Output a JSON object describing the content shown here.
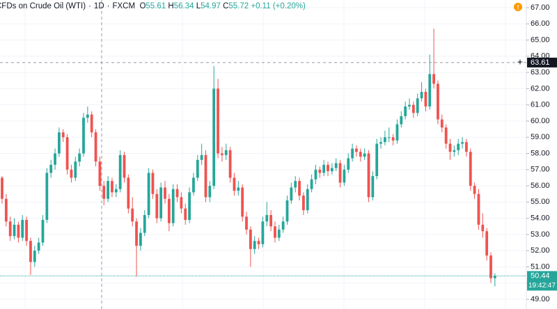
{
  "header": {
    "symbol": "CFDs on Crude Oil (WTI)",
    "interval": "1D",
    "exchange": "FXCM",
    "open_label": "O",
    "open": "55.61",
    "high_label": "H",
    "high": "56.34",
    "low_label": "L",
    "low": "54.97",
    "close_label": "C",
    "close": "55.72",
    "change": "+0.11 (+0.20%)"
  },
  "chart_data": {
    "type": "candlestick",
    "up_color": "#26a69a",
    "down_color": "#ef5350",
    "grid": true,
    "ylim": [
      48.4,
      67.47
    ],
    "yticks": [
      {
        "value": 49,
        "label": "49.00"
      },
      {
        "value": 50,
        "label": "50.00"
      },
      {
        "value": 51,
        "label": "51.00"
      },
      {
        "value": 52,
        "label": "52.00"
      },
      {
        "value": 53,
        "label": "53.00"
      },
      {
        "value": 54,
        "label": "54.00"
      },
      {
        "value": 55,
        "label": "55.00"
      },
      {
        "value": 56,
        "label": "56.00"
      },
      {
        "value": 57,
        "label": "57.00"
      },
      {
        "value": 58,
        "label": "58.00"
      },
      {
        "value": 59,
        "label": "59.00"
      },
      {
        "value": 60,
        "label": "60.00"
      },
      {
        "value": 61,
        "label": "61.00"
      },
      {
        "value": 62,
        "label": "62.00"
      },
      {
        "value": 63,
        "label": "63.00"
      },
      {
        "value": 64,
        "label": "64.00"
      },
      {
        "value": 65,
        "label": "65.00"
      },
      {
        "value": 66,
        "label": "66.00"
      },
      {
        "value": 67,
        "label": "67.00"
      }
    ],
    "crosshair_price": 63.61,
    "last_price": 50.44,
    "countdown": "19:42:47",
    "candles": [
      [
        56.5,
        56.6,
        54.9,
        55.2
      ],
      [
        55.2,
        55.5,
        53.5,
        53.8
      ],
      [
        53.8,
        54.1,
        52.6,
        52.9
      ],
      [
        52.9,
        54.0,
        52.7,
        53.6
      ],
      [
        53.6,
        53.8,
        52.5,
        52.8
      ],
      [
        52.8,
        54.2,
        52.6,
        53.9
      ],
      [
        53.9,
        54.1,
        52.3,
        52.6
      ],
      [
        52.6,
        52.8,
        50.5,
        51.3
      ],
      [
        51.3,
        52.3,
        51.0,
        52.0
      ],
      [
        52.0,
        52.8,
        51.8,
        52.5
      ],
      [
        52.5,
        54.2,
        52.3,
        53.9
      ],
      [
        53.9,
        57.1,
        53.7,
        56.8
      ],
      [
        56.8,
        57.6,
        56.5,
        57.3
      ],
      [
        57.3,
        58.3,
        57.0,
        58.0
      ],
      [
        58.0,
        59.6,
        57.8,
        59.3
      ],
      [
        59.3,
        59.5,
        58.7,
        59.0
      ],
      [
        59.0,
        59.2,
        56.7,
        57.0
      ],
      [
        57.0,
        57.3,
        56.2,
        56.5
      ],
      [
        56.5,
        57.8,
        56.3,
        57.5
      ],
      [
        57.5,
        58.3,
        57.2,
        58.0
      ],
      [
        58.0,
        60.5,
        57.8,
        60.2
      ],
      [
        60.2,
        60.9,
        59.9,
        60.4
      ],
      [
        60.4,
        60.6,
        59.0,
        59.3
      ],
      [
        59.3,
        59.5,
        57.2,
        57.5
      ],
      [
        57.5,
        57.8,
        55.7,
        56.0
      ],
      [
        56.0,
        56.3,
        54.8,
        55.2
      ],
      [
        55.2,
        56.6,
        55.0,
        56.3
      ],
      [
        56.3,
        56.5,
        55.3,
        55.6
      ],
      [
        55.6,
        56.1,
        55.3,
        55.8
      ],
      [
        55.8,
        58.2,
        55.6,
        57.9
      ],
      [
        57.9,
        58.1,
        56.2,
        56.5
      ],
      [
        56.5,
        56.7,
        54.3,
        54.6
      ],
      [
        54.6,
        55.3,
        53.5,
        53.8
      ],
      [
        53.8,
        54.0,
        50.4,
        52.3
      ],
      [
        52.3,
        53.4,
        52.0,
        53.1
      ],
      [
        53.1,
        54.5,
        52.9,
        54.2
      ],
      [
        54.2,
        57.1,
        54.0,
        56.8
      ],
      [
        56.8,
        57.0,
        55.2,
        55.5
      ],
      [
        55.5,
        55.8,
        53.7,
        54.0
      ],
      [
        54.0,
        56.2,
        53.8,
        55.9
      ],
      [
        55.9,
        56.3,
        54.9,
        55.2
      ],
      [
        55.2,
        55.5,
        53.2,
        53.7
      ],
      [
        53.7,
        56.1,
        53.5,
        55.8
      ],
      [
        55.8,
        56.1,
        55.0,
        55.3
      ],
      [
        55.3,
        55.6,
        54.3,
        54.6
      ],
      [
        54.6,
        54.9,
        53.6,
        53.9
      ],
      [
        53.9,
        55.9,
        53.7,
        55.6
      ],
      [
        55.6,
        56.8,
        55.4,
        56.5
      ],
      [
        56.5,
        57.9,
        56.3,
        57.6
      ],
      [
        57.6,
        58.6,
        57.3,
        57.9
      ],
      [
        57.9,
        58.2,
        55.0,
        55.3
      ],
      [
        55.3,
        56.3,
        55.0,
        56.0
      ],
      [
        56.0,
        63.4,
        55.8,
        62.0
      ],
      [
        62.0,
        62.6,
        57.7,
        58.0
      ],
      [
        58.0,
        58.4,
        57.5,
        57.9
      ],
      [
        57.9,
        58.6,
        57.6,
        58.2
      ],
      [
        58.2,
        58.4,
        56.2,
        56.5
      ],
      [
        56.5,
        56.8,
        55.4,
        55.7
      ],
      [
        55.7,
        56.3,
        55.4,
        55.9
      ],
      [
        55.9,
        56.1,
        53.8,
        54.1
      ],
      [
        54.1,
        54.4,
        53.0,
        53.3
      ],
      [
        53.3,
        53.5,
        51.0,
        52.1
      ],
      [
        52.1,
        52.9,
        51.8,
        52.6
      ],
      [
        52.6,
        52.8,
        52.1,
        52.4
      ],
      [
        52.4,
        54.1,
        52.2,
        53.8
      ],
      [
        53.8,
        55.0,
        53.5,
        54.2
      ],
      [
        54.2,
        54.5,
        53.2,
        53.5
      ],
      [
        53.5,
        53.8,
        52.5,
        52.8
      ],
      [
        52.8,
        53.6,
        52.6,
        53.3
      ],
      [
        53.3,
        54.1,
        53.1,
        53.8
      ],
      [
        53.8,
        55.4,
        53.6,
        55.1
      ],
      [
        55.1,
        56.2,
        54.9,
        55.9
      ],
      [
        55.9,
        56.6,
        55.6,
        56.3
      ],
      [
        56.3,
        56.5,
        55.1,
        55.4
      ],
      [
        55.4,
        55.6,
        54.2,
        54.5
      ],
      [
        54.5,
        56.1,
        54.3,
        55.8
      ],
      [
        55.8,
        56.7,
        55.6,
        56.4
      ],
      [
        56.4,
        57.3,
        56.1,
        57.0
      ],
      [
        57.0,
        57.2,
        56.5,
        56.8
      ],
      [
        56.8,
        57.6,
        56.6,
        57.3
      ],
      [
        57.3,
        57.5,
        56.6,
        56.9
      ],
      [
        56.9,
        57.4,
        56.7,
        57.1
      ],
      [
        57.1,
        57.7,
        56.9,
        57.4
      ],
      [
        57.4,
        57.6,
        55.9,
        56.2
      ],
      [
        56.2,
        57.3,
        56.0,
        57.0
      ],
      [
        57.0,
        58.0,
        56.8,
        57.7
      ],
      [
        57.7,
        58.6,
        57.5,
        58.3
      ],
      [
        58.3,
        58.5,
        57.8,
        58.1
      ],
      [
        58.1,
        58.3,
        57.5,
        57.8
      ],
      [
        57.8,
        58.3,
        57.6,
        58.0
      ],
      [
        58.0,
        58.2,
        55.0,
        55.3
      ],
      [
        55.3,
        56.9,
        55.1,
        56.6
      ],
      [
        56.6,
        58.9,
        56.4,
        58.6
      ],
      [
        58.6,
        59.0,
        58.3,
        58.7
      ],
      [
        58.7,
        59.4,
        58.5,
        59.0
      ],
      [
        59.0,
        59.6,
        58.7,
        59.0
      ],
      [
        59.0,
        59.2,
        58.5,
        58.8
      ],
      [
        58.8,
        60.1,
        58.6,
        59.8
      ],
      [
        59.8,
        60.6,
        59.6,
        60.3
      ],
      [
        60.3,
        61.2,
        60.1,
        60.9
      ],
      [
        60.9,
        61.4,
        60.7,
        61.0
      ],
      [
        61.0,
        61.2,
        60.2,
        60.5
      ],
      [
        60.5,
        61.7,
        60.3,
        61.4
      ],
      [
        61.4,
        62.4,
        61.2,
        61.8
      ],
      [
        61.8,
        62.0,
        60.6,
        60.9
      ],
      [
        60.9,
        64.1,
        60.7,
        62.9
      ],
      [
        62.9,
        65.7,
        62.0,
        62.3
      ],
      [
        62.3,
        62.5,
        59.8,
        60.1
      ],
      [
        60.1,
        60.4,
        59.3,
        59.6
      ],
      [
        59.6,
        59.8,
        58.3,
        58.6
      ],
      [
        58.6,
        58.9,
        57.6,
        58.1
      ],
      [
        58.1,
        58.5,
        57.8,
        58.2
      ],
      [
        58.2,
        58.9,
        57.9,
        58.6
      ],
      [
        58.6,
        59.0,
        58.3,
        58.7
      ],
      [
        58.7,
        58.9,
        57.8,
        58.1
      ],
      [
        58.1,
        58.3,
        55.7,
        56.0
      ],
      [
        56.0,
        56.2,
        55.2,
        55.5
      ],
      [
        55.5,
        55.8,
        53.3,
        53.6
      ],
      [
        53.6,
        54.3,
        52.8,
        53.2
      ],
      [
        53.2,
        53.4,
        51.4,
        51.7
      ],
      [
        51.7,
        51.9,
        50.0,
        50.3
      ],
      [
        50.3,
        50.6,
        49.8,
        50.44
      ]
    ]
  }
}
